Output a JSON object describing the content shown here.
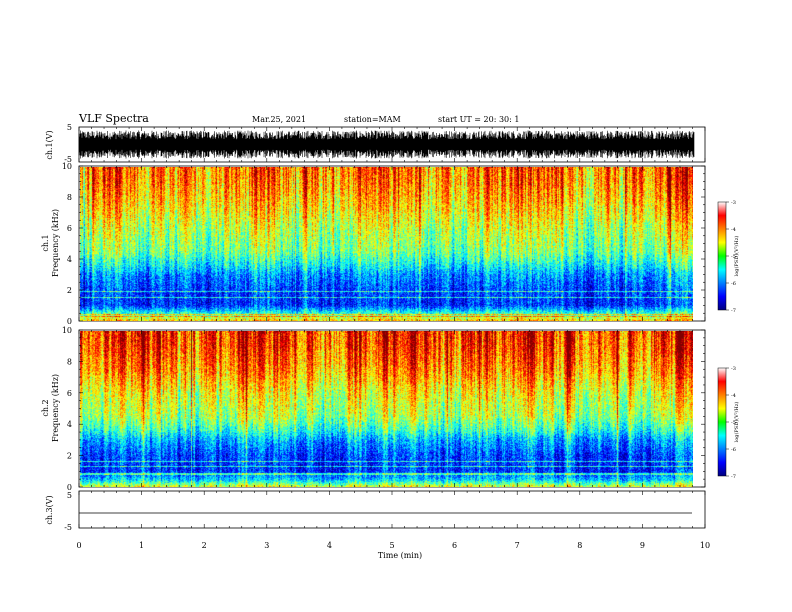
{
  "header": {
    "title": "VLF Spectra",
    "date": "Mar.25, 2021",
    "station": "station=MAM",
    "start": "start  UT =   20: 30: 1"
  },
  "chart_data": [
    {
      "type": "line",
      "name": "waveform ch.1",
      "ylabel": "ch.1(V)",
      "ylim": [
        -5,
        5
      ],
      "xlim": [
        0,
        10
      ],
      "yticks": [
        "5",
        "-5"
      ],
      "signal": "dense noise spanning roughly -4 to +4 V over 0 to 9.83 min"
    },
    {
      "type": "heatmap",
      "name": "spectrogram ch.1",
      "ylabel": "ch.1\nFrequency (kHz)",
      "ylim": [
        0,
        10
      ],
      "yticks": [
        "0",
        "2",
        "4",
        "6",
        "8",
        "10"
      ],
      "xlim": [
        0,
        9.83
      ],
      "colorbar": {
        "label": "log(PSD)(V²/Hz)",
        "range": [
          -7,
          -3
        ],
        "ticks": [
          "-3",
          "-4",
          "-5",
          "-6",
          "-7"
        ]
      },
      "profile": [
        {
          "f": 0.0,
          "v": -4.3
        },
        {
          "f": 0.4,
          "v": -5.2
        },
        {
          "f": 1.0,
          "v": -6.3
        },
        {
          "f": 2.0,
          "v": -6.2
        },
        {
          "f": 3.0,
          "v": -5.9
        },
        {
          "f": 3.6,
          "v": -5.5
        },
        {
          "f": 4.5,
          "v": -5.0
        },
        {
          "f": 6.0,
          "v": -4.7
        },
        {
          "f": 7.5,
          "v": -4.3
        },
        {
          "f": 9.0,
          "v": -4.0
        },
        {
          "f": 10.0,
          "v": -3.9
        }
      ],
      "lines_khz": [
        0.4,
        1.5,
        1.9,
        0.25
      ]
    },
    {
      "type": "heatmap",
      "name": "spectrogram ch.2",
      "ylabel": "ch.2\nFrequency (kHz)",
      "ylim": [
        0,
        10
      ],
      "yticks": [
        "0",
        "2",
        "4",
        "6",
        "8",
        "10"
      ],
      "xlim": [
        0,
        9.83
      ],
      "colorbar": {
        "label": "log(PSD)(V²/Hz)",
        "range": [
          -7,
          -3
        ],
        "ticks": [
          "-3",
          "-4",
          "-5",
          "-6",
          "-7"
        ]
      },
      "profile": [
        {
          "f": 0.0,
          "v": -4.6
        },
        {
          "f": 0.4,
          "v": -5.6
        },
        {
          "f": 1.0,
          "v": -6.3
        },
        {
          "f": 2.0,
          "v": -6.2
        },
        {
          "f": 3.0,
          "v": -5.8
        },
        {
          "f": 3.6,
          "v": -5.3
        },
        {
          "f": 4.5,
          "v": -4.8
        },
        {
          "f": 6.0,
          "v": -4.5
        },
        {
          "f": 7.5,
          "v": -4.0
        },
        {
          "f": 9.0,
          "v": -3.7
        },
        {
          "f": 10.0,
          "v": -3.6
        }
      ],
      "lines_khz": [
        0.8,
        1.3,
        1.6
      ]
    },
    {
      "type": "line",
      "name": "waveform ch.3",
      "ylabel": "ch.3(V)",
      "ylim": [
        -5,
        5
      ],
      "xlim": [
        0,
        10
      ],
      "yticks": [
        "5",
        "-5"
      ],
      "signal": "flat line at about -1.5 V"
    }
  ],
  "xaxis": {
    "label": "Time  (min)",
    "ticks": [
      "0",
      "1",
      "2",
      "3",
      "4",
      "5",
      "6",
      "7",
      "8",
      "9",
      "10"
    ],
    "range": [
      0,
      10
    ]
  }
}
